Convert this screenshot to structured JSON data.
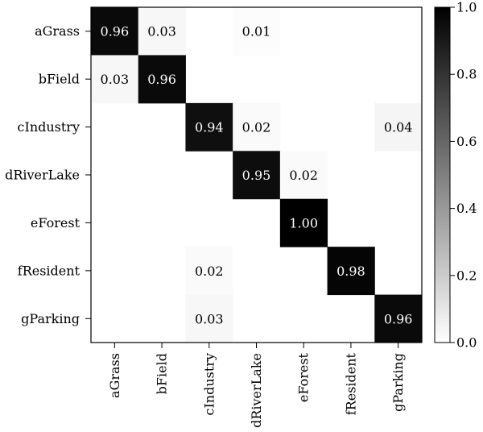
{
  "chart_data": {
    "type": "heatmap",
    "rows": [
      "aGrass",
      "bField",
      "cIndustry",
      "dRiverLake",
      "eForest",
      "fResident",
      "gParking"
    ],
    "columns": [
      "aGrass",
      "bField",
      "cIndustry",
      "dRiverLake",
      "eForest",
      "fResident",
      "gParking"
    ],
    "cells": [
      {
        "row": "aGrass",
        "col": "aGrass",
        "value": 0.96,
        "label": "0.96"
      },
      {
        "row": "aGrass",
        "col": "bField",
        "value": 0.03,
        "label": "0.03"
      },
      {
        "row": "aGrass",
        "col": "dRiverLake",
        "value": 0.01,
        "label": "0.01"
      },
      {
        "row": "bField",
        "col": "aGrass",
        "value": 0.03,
        "label": "0.03"
      },
      {
        "row": "bField",
        "col": "bField",
        "value": 0.96,
        "label": "0.96"
      },
      {
        "row": "cIndustry",
        "col": "cIndustry",
        "value": 0.94,
        "label": "0.94"
      },
      {
        "row": "cIndustry",
        "col": "dRiverLake",
        "value": 0.02,
        "label": "0.02"
      },
      {
        "row": "cIndustry",
        "col": "gParking",
        "value": 0.04,
        "label": "0.04"
      },
      {
        "row": "dRiverLake",
        "col": "dRiverLake",
        "value": 0.95,
        "label": "0.95"
      },
      {
        "row": "dRiverLake",
        "col": "eForest",
        "value": 0.02,
        "label": "0.02"
      },
      {
        "row": "eForest",
        "col": "eForest",
        "value": 1.0,
        "label": "1.00"
      },
      {
        "row": "fResident",
        "col": "cIndustry",
        "value": 0.02,
        "label": "0.02"
      },
      {
        "row": "fResident",
        "col": "fResident",
        "value": 0.98,
        "label": "0.98"
      },
      {
        "row": "gParking",
        "col": "cIndustry",
        "value": 0.03,
        "label": "0.03"
      },
      {
        "row": "gParking",
        "col": "gParking",
        "value": 0.96,
        "label": "0.96"
      }
    ],
    "colorbar": {
      "range": [
        0.0,
        1.0
      ],
      "ticks": [
        "0.0",
        "0.2",
        "0.4",
        "0.6",
        "0.8",
        "1.0"
      ],
      "colors": [
        "#ffffff",
        "#000000"
      ]
    },
    "title": "",
    "xlabel": "",
    "ylabel": ""
  }
}
